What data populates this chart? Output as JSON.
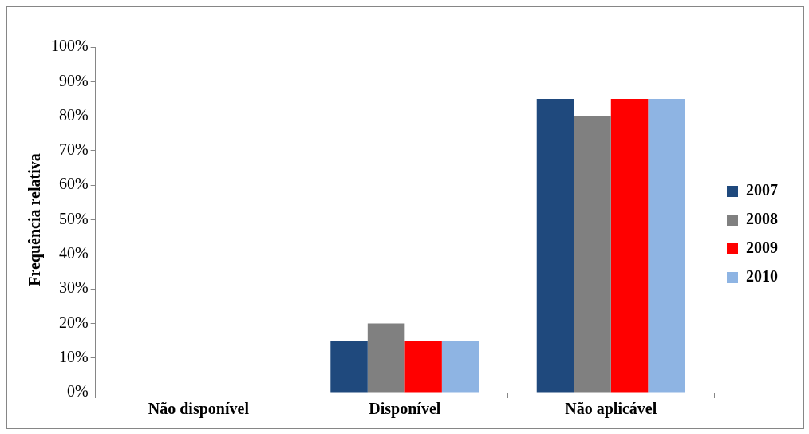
{
  "chart_data": {
    "type": "bar",
    "ylabel": "Frequência relativa",
    "categories": [
      "Não disponível",
      "Disponível",
      "Não aplicável"
    ],
    "series": [
      {
        "name": "2007",
        "color": "#1f497d",
        "values": [
          0,
          15,
          85
        ]
      },
      {
        "name": "2008",
        "color": "#808080",
        "values": [
          0,
          20,
          80
        ]
      },
      {
        "name": "2009",
        "color": "#ff0000",
        "values": [
          0,
          15,
          85
        ]
      },
      {
        "name": "2010",
        "color": "#8eb4e3",
        "values": [
          0,
          15,
          85
        ]
      }
    ],
    "ylim": [
      0,
      100
    ],
    "yticks": [
      {
        "value": 0,
        "label": "0%"
      },
      {
        "value": 10,
        "label": "10%"
      },
      {
        "value": 20,
        "label": "20%"
      },
      {
        "value": 30,
        "label": "30%"
      },
      {
        "value": 40,
        "label": "40%"
      },
      {
        "value": 50,
        "label": "50%"
      },
      {
        "value": 60,
        "label": "60%"
      },
      {
        "value": 70,
        "label": "70%"
      },
      {
        "value": 80,
        "label": "80%"
      },
      {
        "value": 90,
        "label": "90%"
      },
      {
        "value": 100,
        "label": "100%"
      }
    ],
    "grid": false,
    "legend": "right"
  }
}
